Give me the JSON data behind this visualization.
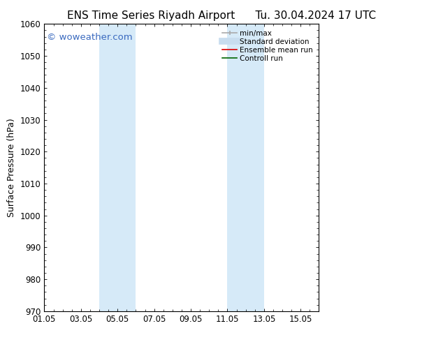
{
  "title_left": "ENS Time Series Riyadh Airport",
  "title_right": "Tu. 30.04.2024 17 UTC",
  "ylabel": "Surface Pressure (hPa)",
  "ylim": [
    970,
    1060
  ],
  "yticks": [
    970,
    980,
    990,
    1000,
    1010,
    1020,
    1030,
    1040,
    1050,
    1060
  ],
  "xlim": [
    1,
    16
  ],
  "xtick_positions": [
    1,
    3,
    5,
    7,
    9,
    11,
    13,
    15
  ],
  "xtick_labels": [
    "01.05",
    "03.05",
    "05.05",
    "07.05",
    "09.05",
    "11.05",
    "13.05",
    "15.05"
  ],
  "shade_bands": [
    {
      "x_start": 4.0,
      "x_end": 6.0
    },
    {
      "x_start": 11.0,
      "x_end": 13.0
    }
  ],
  "shade_color": "#d6eaf8",
  "background_color": "#ffffff",
  "watermark_text": "© woweather.com",
  "watermark_color": "#3a6abf",
  "legend_items": [
    {
      "label": "min/max",
      "color": "#aaaaaa",
      "lw": 1.2
    },
    {
      "label": "Standard deviation",
      "color": "#c8ddef",
      "lw": 7
    },
    {
      "label": "Ensemble mean run",
      "color": "#dd0000",
      "lw": 1.2
    },
    {
      "label": "Controll run",
      "color": "#006600",
      "lw": 1.2
    }
  ],
  "spine_color": "#000000",
  "tick_font_size": 8.5,
  "label_font_size": 9,
  "title_font_size": 11,
  "watermark_font_size": 9.5
}
